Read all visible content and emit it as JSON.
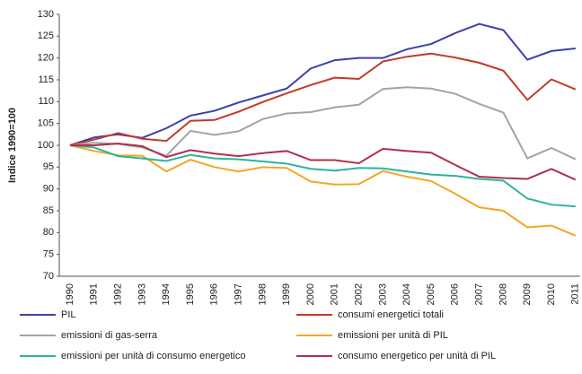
{
  "chart_data": {
    "type": "line",
    "y_label": "Indice 1990=100",
    "categories": [
      "1990",
      "1991",
      "1992",
      "1993",
      "1994",
      "1995",
      "1996",
      "1997",
      "1998",
      "1999",
      "2000",
      "2001",
      "2002",
      "2003",
      "2004",
      "2005",
      "2006",
      "2007",
      "2008",
      "2009",
      "2010",
      "2011"
    ],
    "series": [
      {
        "name": "PIL",
        "color": "#3b3fae",
        "values": [
          100,
          101.8,
          102.5,
          101.7,
          103.9,
          106.8,
          107.9,
          109.8,
          111.4,
          113,
          117.6,
          119.5,
          120,
          120,
          122,
          123.2,
          125.7,
          127.8,
          126.4,
          119.6,
          121.6,
          122.2
        ]
      },
      {
        "name": "consumi energetici totali",
        "color": "#c0392b",
        "values": [
          100,
          101.3,
          102.8,
          101.5,
          101,
          105.6,
          105.8,
          107.7,
          109.9,
          111.9,
          113.8,
          115.5,
          115.2,
          119.2,
          120.3,
          121,
          120.1,
          118.9,
          117.1,
          110.4,
          115.1,
          112.8
        ]
      },
      {
        "name": "emissioni di gas-serra",
        "color": "#a3a3a3",
        "values": [
          100,
          100.6,
          100.3,
          99.5,
          97.6,
          103.3,
          102.4,
          103.2,
          106,
          107.3,
          107.6,
          108.7,
          109.3,
          112.9,
          113.3,
          113,
          111.8,
          109.5,
          107.5,
          97,
          99.4,
          96.8
        ]
      },
      {
        "name": "emissioni per unità di PIL",
        "color": "#f3a624",
        "values": [
          100,
          98.7,
          97.7,
          97.6,
          94,
          96.7,
          95,
          94,
          95,
          94.8,
          91.7,
          91,
          91.1,
          94.1,
          92.8,
          91.8,
          88.9,
          85.8,
          85,
          81.2,
          81.6,
          79.3
        ]
      },
      {
        "name": "emissioni per unità di consumo energetico",
        "color": "#2bb39a",
        "values": [
          100,
          99.5,
          97.5,
          97,
          96.4,
          97.8,
          97,
          96.8,
          96.3,
          95.8,
          94.6,
          94.2,
          94.8,
          94.7,
          94,
          93.3,
          93,
          92.3,
          91.9,
          87.8,
          86.4,
          86
        ]
      },
      {
        "name": "consumo energetico per unità di PIL",
        "color": "#b0304a",
        "values": [
          100,
          100,
          100.4,
          99.8,
          97.3,
          98.9,
          98.1,
          97.5,
          98.2,
          98.7,
          96.6,
          96.6,
          95.9,
          99.2,
          98.7,
          98.3,
          95.5,
          92.8,
          92.5,
          92.3,
          94.6,
          92.1
        ]
      }
    ],
    "ylim": [
      70,
      130
    ],
    "yticks": [
      70,
      75,
      80,
      85,
      90,
      95,
      100,
      105,
      110,
      115,
      120,
      125,
      130
    ],
    "grid": false
  }
}
